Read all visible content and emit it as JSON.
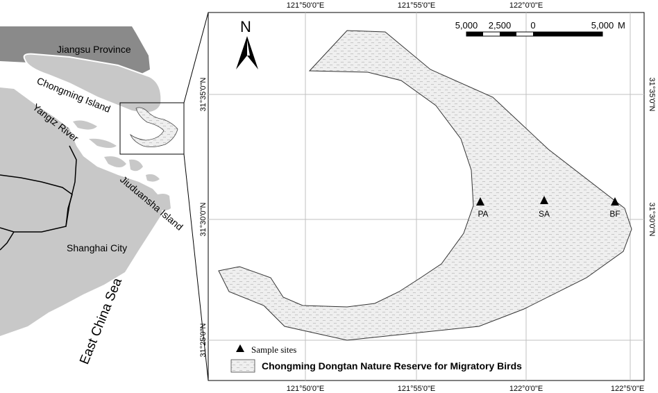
{
  "inset_map": {
    "labels": {
      "jiangsu": "Jiangsu Province",
      "chongming": "Chongming Island",
      "yangtz": "Yangtz River",
      "jiuduansha": "Jiuduansha Island",
      "shanghai": "Shanghai City",
      "east_china_sea": "East China Sea"
    }
  },
  "main_map": {
    "north_label": "N",
    "scale_bar": {
      "labels": [
        "5,000",
        "2,500",
        "0",
        "5,000"
      ],
      "unit": "M"
    },
    "top_ticks": [
      "121°50'0\"E",
      "121°55'0\"E",
      "122°0'0\"E"
    ],
    "bottom_ticks": [
      "121°50'0\"E",
      "121°55'0\"E",
      "122°0'0\"E",
      "122°5'0\"E"
    ],
    "left_ticks": [
      "31°35'0\"N",
      "31°30'0\"N",
      "31°25'0\"N"
    ],
    "right_ticks": [
      "31°35'0\"N",
      "31°30'0\"N"
    ],
    "sites": [
      {
        "name": "PA"
      },
      {
        "name": "SA"
      },
      {
        "name": "BF"
      }
    ],
    "legend": {
      "sample_sites": "Sample sites",
      "reserve": "Chongming Dongtan Nature Reserve for Migratory Birds"
    }
  },
  "colors": {
    "land_dark": "#808080",
    "land_light": "#c8c8c8",
    "reserve_fill": "#eeeeee",
    "grid": "#c0c0c0"
  }
}
